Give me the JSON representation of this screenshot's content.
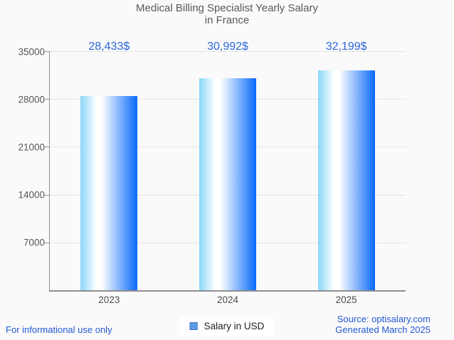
{
  "chart_data": {
    "type": "bar",
    "title": "Medical Billing Specialist Yearly Salary in France",
    "title_lines": [
      "Medical Billing Specialist Yearly Salary",
      "in France"
    ],
    "categories": [
      "2023",
      "2024",
      "2025"
    ],
    "series": [
      {
        "name": "Salary in USD",
        "values": [
          28433,
          30992,
          32199
        ],
        "value_labels": [
          "28,433$",
          "30,992$",
          "32,199$"
        ]
      }
    ],
    "xlabel": "",
    "ylabel": "",
    "ylim": [
      0,
      35000
    ],
    "yticks": [
      7000,
      14000,
      21000,
      28000,
      35000
    ],
    "grid": true,
    "legend_position": "bottom"
  },
  "legend": {
    "label": "Salary in USD"
  },
  "footer": {
    "disclaimer": "For informational use only",
    "source": "Source: optisalary.com",
    "generated": "Generated March 2025"
  },
  "colors": {
    "background": "#fafafa",
    "title": "#58585a",
    "axis_line": "#8f8f8f",
    "gridline": "#e4e4e4",
    "tick_label": "#565656",
    "category_label": "#4b4b4b",
    "value_label": "#2c68da",
    "footer_text": "#2458d6",
    "legend_text": "#1f1f1f",
    "legend_swatch_fill": "#5b9ae8",
    "legend_swatch_border": "#3f74c4",
    "bar_gradient_left": "#8ad7f8",
    "bar_gradient_highlight": "#ffffff",
    "bar_gradient_right": "#0a6afa"
  }
}
